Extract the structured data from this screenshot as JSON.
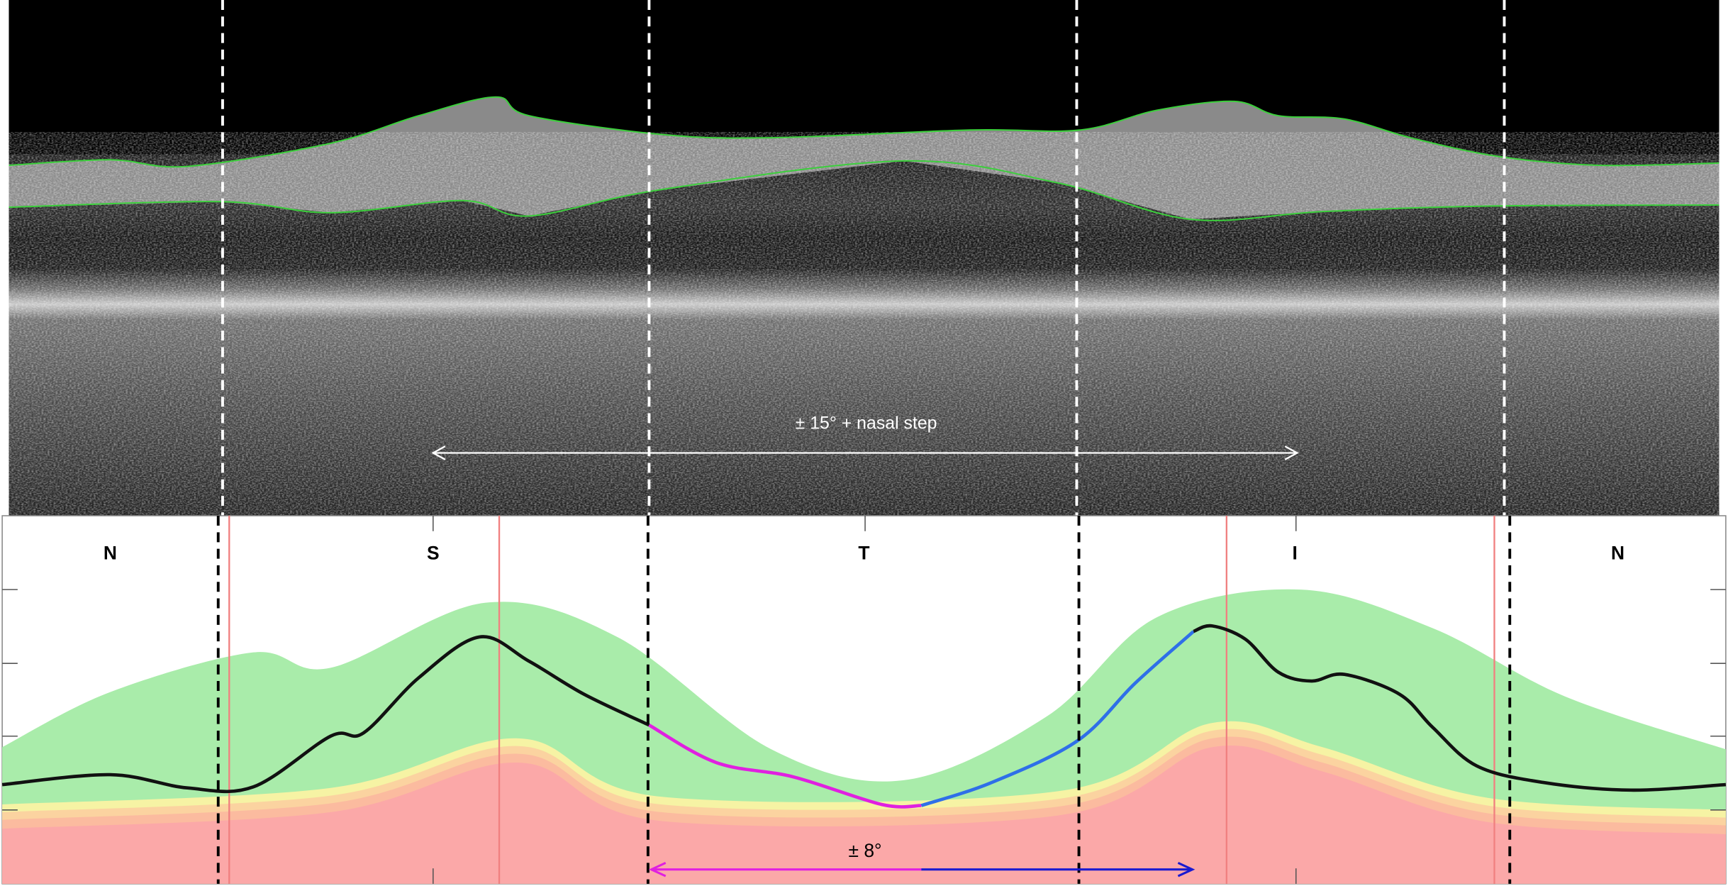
{
  "top_panel": {
    "annotation": "± 15° + nasal step"
  },
  "profile": {
    "sectors": [
      "N",
      "S",
      "T",
      "I",
      "N"
    ],
    "annotation": "± 8°"
  }
}
